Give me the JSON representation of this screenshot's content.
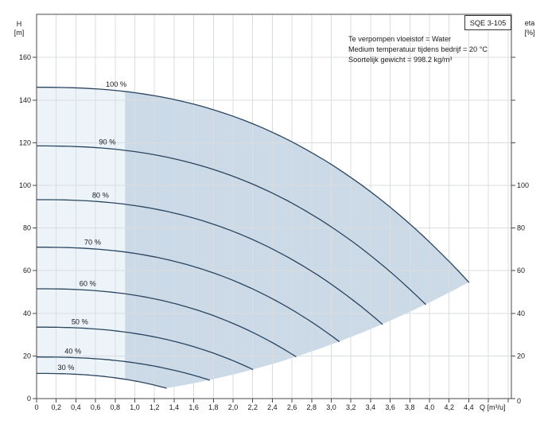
{
  "chart_data": {
    "type": "line",
    "title": "SQE 3-105",
    "conditions": [
      "Te verpompen vloeistof = Water",
      "Medium temperatuur tijdens bedrijf = 20 °C",
      "Soortelijk gewicht = 998.2 kg/m³"
    ],
    "x_axis": {
      "label": "Q [m³/u]",
      "min": 0,
      "labeled_max": 4.4,
      "grid_max": 4.8,
      "step": 0.2,
      "tick_labels": [
        "0",
        "0,2",
        "0,4",
        "0,6",
        "0,8",
        "1,0",
        "1,2",
        "1,4",
        "1,6",
        "1,8",
        "2,0",
        "2,2",
        "2,4",
        "2,6",
        "2,8",
        "3,0",
        "3,2",
        "3,4",
        "3,6",
        "3,8",
        "4,0",
        "4,2",
        "4,4"
      ]
    },
    "y_axis_left": {
      "label_line1": "H",
      "label_line2": "[m]",
      "min": 0,
      "max": 160,
      "step": 20,
      "tick_labels": [
        "0",
        "20",
        "40",
        "60",
        "80",
        "100",
        "120",
        "140",
        "160"
      ]
    },
    "y_axis_right": {
      "label_line1": "eta",
      "label_line2": "[%]",
      "min": 0,
      "labeled_max": 100,
      "step": 20,
      "tick_labels": [
        "0",
        "20",
        "40",
        "60",
        "80",
        "100"
      ]
    },
    "grid": true,
    "legend_position": "labels-on-curves",
    "curve_model": {
      "shape_exponent": 2.42,
      "min_flow_shade_boundary_q": 0.9,
      "max_flow_locus": "H = 2.82 * Q^2",
      "key_points_100pct": [
        [
          0,
          146
        ],
        [
          1.1,
          142.8
        ],
        [
          2.2,
          128.9
        ],
        [
          3.3,
          100.4
        ],
        [
          4.4,
          54.6
        ]
      ]
    },
    "series": [
      {
        "label": "100 %",
        "speed_pct": 100,
        "h_shutoff_m": 146.0,
        "q_max_m3h": 4.4,
        "h_end_m": 54.6,
        "label_q": 0.81
      },
      {
        "label": "90 %",
        "speed_pct": 90,
        "h_shutoff_m": 118.5,
        "q_max_m3h": 3.96,
        "h_end_m": 44.2,
        "label_q": 0.72
      },
      {
        "label": "80 %",
        "speed_pct": 80,
        "h_shutoff_m": 93.3,
        "q_max_m3h": 3.52,
        "h_end_m": 34.9,
        "label_q": 0.65
      },
      {
        "label": "70 %",
        "speed_pct": 70,
        "h_shutoff_m": 71.0,
        "q_max_m3h": 3.08,
        "h_end_m": 26.8,
        "label_q": 0.57
      },
      {
        "label": "60 %",
        "speed_pct": 60,
        "h_shutoff_m": 51.5,
        "q_max_m3h": 2.64,
        "h_end_m": 19.7,
        "label_q": 0.52
      },
      {
        "label": "50 %",
        "speed_pct": 50,
        "h_shutoff_m": 33.5,
        "q_max_m3h": 2.2,
        "h_end_m": 13.7,
        "label_q": 0.44
      },
      {
        "label": "40 %",
        "speed_pct": 40,
        "h_shutoff_m": 19.5,
        "q_max_m3h": 1.76,
        "h_end_m": 8.7,
        "label_q": 0.37
      },
      {
        "label": "30 %",
        "speed_pct": 30,
        "h_shutoff_m": 11.8,
        "q_max_m3h": 1.32,
        "h_end_m": 4.9,
        "label_q": 0.3
      }
    ],
    "colors": {
      "fill_light": "#ecf3f9",
      "fill_dark": "#ccd9e6",
      "curve": "#2a4560",
      "grid": "#d8dde2",
      "axis": "#4a4a4a",
      "text": "#1a1a1a",
      "curve_label": "#333333"
    }
  }
}
